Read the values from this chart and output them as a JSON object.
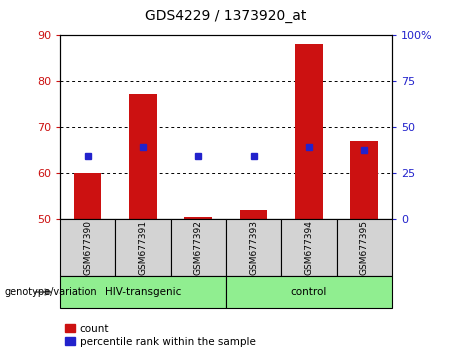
{
  "title": "GDS4229 / 1373920_at",
  "samples": [
    "GSM677390",
    "GSM677391",
    "GSM677392",
    "GSM677393",
    "GSM677394",
    "GSM677395"
  ],
  "count_values": [
    60.2,
    77.3,
    50.5,
    52.0,
    88.2,
    67.0
  ],
  "percentile_values": [
    63.8,
    65.8,
    63.8,
    63.8,
    65.8,
    65.0
  ],
  "bar_bottom": 50,
  "left_ylim": [
    50,
    90
  ],
  "right_ylim": [
    0,
    100
  ],
  "left_yticks": [
    50,
    60,
    70,
    80,
    90
  ],
  "right_yticks": [
    0,
    25,
    50,
    75,
    100
  ],
  "right_yticklabels": [
    "0",
    "25",
    "50",
    "75",
    "100%"
  ],
  "bar_color": "#cc1111",
  "dot_color": "#2222cc",
  "group1_label": "HIV-transgenic",
  "group2_label": "control",
  "group1_indices": [
    0,
    1,
    2
  ],
  "group2_indices": [
    3,
    4,
    5
  ],
  "genotype_label": "genotype/variation",
  "legend_count": "count",
  "legend_percentile": "percentile rank within the sample",
  "group_box_color": "#90ee90",
  "sample_box_color": "#d3d3d3",
  "bar_width": 0.5
}
